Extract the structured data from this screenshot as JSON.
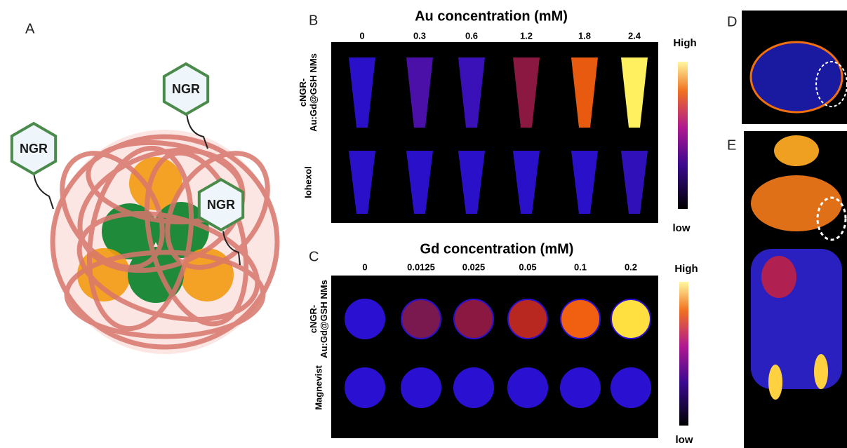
{
  "panels": {
    "A": {
      "label": "A",
      "nodes": [
        {
          "label": "NGR"
        },
        {
          "label": "NGR"
        },
        {
          "label": "NGR"
        }
      ]
    },
    "B": {
      "label": "B",
      "title": "Au concentration (mM)",
      "columns": [
        "0",
        "0.3",
        "0.6",
        "1.2",
        "1.8",
        "2.4"
      ],
      "rows": [
        {
          "lines": [
            "cNGR-",
            "Au:Gd@GSH NMs"
          ],
          "colors": [
            "#2a10c8",
            "#4a10a8",
            "#3a10b8",
            "#8a1840",
            "#e85a10",
            "#fff060"
          ]
        },
        {
          "lines": [
            "Iohexol"
          ],
          "colors": [
            "#2a10c8",
            "#2a10c8",
            "#2a10c8",
            "#2a10c8",
            "#2a10c8",
            "#3010b8"
          ]
        }
      ],
      "scale": {
        "high": "High",
        "low": "low"
      }
    },
    "C": {
      "label": "C",
      "title": "Gd concentration (mM)",
      "columns": [
        "0",
        "0.0125",
        "0.025",
        "0.05",
        "0.1",
        "0.2"
      ],
      "rows": [
        {
          "lines": [
            "cNGR-",
            "Au:Gd@GSH NMs"
          ],
          "colors": [
            "#2a10d0",
            "#7a1850",
            "#8a1840",
            "#b82820",
            "#f06010",
            "#ffe040"
          ]
        },
        {
          "lines": [
            "Magnevist"
          ],
          "colors": [
            "#2a10d0",
            "#2a10d0",
            "#2a10d0",
            "#2a10d0",
            "#2a10d0",
            "#2a10d0"
          ]
        }
      ],
      "scale": {
        "high": "High",
        "low": "low"
      }
    },
    "D": {
      "label": "D"
    },
    "E": {
      "label": "E"
    }
  }
}
